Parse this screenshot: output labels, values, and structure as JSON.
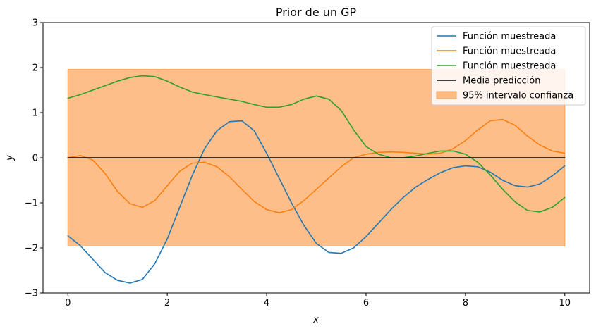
{
  "chart_data": {
    "type": "line",
    "title": "Prior de un GP",
    "xlabel": "x",
    "ylabel": "y",
    "xlim": [
      -0.5,
      10.5
    ],
    "ylim": [
      -3,
      3
    ],
    "xticks": [
      0,
      2,
      4,
      6,
      8,
      10
    ],
    "yticks": [
      -3,
      -2,
      -1,
      0,
      1,
      2,
      3
    ],
    "xtick_labels": [
      "0",
      "2",
      "4",
      "6",
      "8",
      "10"
    ],
    "ytick_labels": [
      "−3",
      "−2",
      "−1",
      "0",
      "1",
      "2",
      "3"
    ],
    "grid": false,
    "legend_position": "top-right",
    "band": {
      "name": "95% intervalo confianza",
      "x_range": [
        0,
        10
      ],
      "lower": -1.96,
      "upper": 1.96,
      "color": "#fdbb84"
    },
    "series": [
      {
        "name": "Función muestreada",
        "color": "#1f77b4",
        "x": [
          0,
          0.25,
          0.5,
          0.75,
          1,
          1.25,
          1.5,
          1.75,
          2,
          2.25,
          2.5,
          2.75,
          3,
          3.25,
          3.5,
          3.75,
          4,
          4.25,
          4.5,
          4.75,
          5,
          5.25,
          5.5,
          5.75,
          6,
          6.25,
          6.5,
          6.75,
          7,
          7.25,
          7.5,
          7.75,
          8,
          8.25,
          8.5,
          8.75,
          9,
          9.25,
          9.5,
          9.75,
          10
        ],
        "values": [
          -1.73,
          -1.95,
          -2.25,
          -2.55,
          -2.72,
          -2.78,
          -2.7,
          -2.35,
          -1.8,
          -1.1,
          -0.4,
          0.2,
          0.6,
          0.8,
          0.82,
          0.6,
          0.1,
          -0.45,
          -1.0,
          -1.5,
          -1.9,
          -2.1,
          -2.12,
          -2.0,
          -1.75,
          -1.45,
          -1.15,
          -0.88,
          -0.65,
          -0.48,
          -0.33,
          -0.22,
          -0.18,
          -0.2,
          -0.32,
          -0.5,
          -0.62,
          -0.65,
          -0.58,
          -0.4,
          -0.18
        ]
      },
      {
        "name": "Función muestreada",
        "color": "#ff7f0e",
        "x": [
          0,
          0.25,
          0.5,
          0.75,
          1,
          1.25,
          1.5,
          1.75,
          2,
          2.25,
          2.5,
          2.75,
          3,
          3.25,
          3.5,
          3.75,
          4,
          4.25,
          4.5,
          4.75,
          5,
          5.25,
          5.5,
          5.75,
          6,
          6.25,
          6.5,
          6.75,
          7,
          7.25,
          7.5,
          7.75,
          8,
          8.25,
          8.5,
          8.75,
          9,
          9.25,
          9.5,
          9.75,
          10
        ],
        "values": [
          0.0,
          0.05,
          -0.05,
          -0.35,
          -0.75,
          -1.02,
          -1.1,
          -0.95,
          -0.62,
          -0.3,
          -0.12,
          -0.1,
          -0.2,
          -0.42,
          -0.7,
          -0.97,
          -1.15,
          -1.22,
          -1.15,
          -0.95,
          -0.7,
          -0.45,
          -0.2,
          0.0,
          0.08,
          0.12,
          0.13,
          0.12,
          0.1,
          0.08,
          0.1,
          0.2,
          0.38,
          0.62,
          0.82,
          0.85,
          0.72,
          0.48,
          0.28,
          0.15,
          0.1
        ]
      },
      {
        "name": "Función muestreada",
        "color": "#2ca02c",
        "x": [
          0,
          0.25,
          0.5,
          0.75,
          1,
          1.25,
          1.5,
          1.75,
          2,
          2.25,
          2.5,
          2.75,
          3,
          3.25,
          3.5,
          3.75,
          4,
          4.25,
          4.5,
          4.75,
          5,
          5.25,
          5.5,
          5.75,
          6,
          6.25,
          6.5,
          6.75,
          7,
          7.25,
          7.5,
          7.75,
          8,
          8.25,
          8.5,
          8.75,
          9,
          9.25,
          9.5,
          9.75,
          10
        ],
        "values": [
          1.32,
          1.4,
          1.5,
          1.6,
          1.7,
          1.78,
          1.82,
          1.8,
          1.7,
          1.57,
          1.46,
          1.4,
          1.35,
          1.3,
          1.25,
          1.18,
          1.12,
          1.12,
          1.18,
          1.3,
          1.37,
          1.3,
          1.05,
          0.62,
          0.25,
          0.08,
          0.0,
          0.0,
          0.04,
          0.1,
          0.15,
          0.15,
          0.08,
          -0.1,
          -0.38,
          -0.7,
          -0.98,
          -1.17,
          -1.2,
          -1.1,
          -0.88
        ]
      },
      {
        "name": "Media predicción",
        "color": "#000000",
        "x": [
          0,
          10
        ],
        "values": [
          0,
          0
        ]
      }
    ]
  }
}
